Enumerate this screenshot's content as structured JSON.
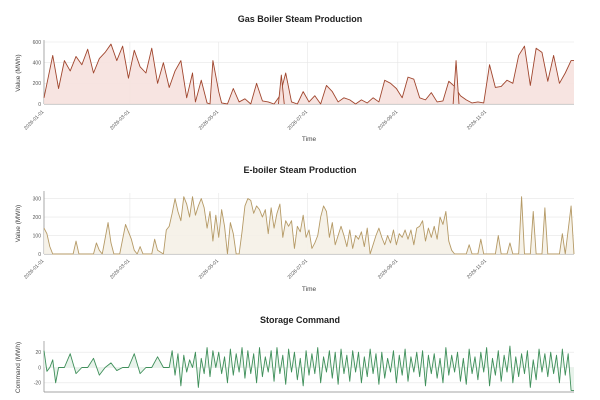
{
  "chart_data": [
    {
      "type": "area",
      "title": "Gas Boiler Steam Production",
      "xlabel": "Time",
      "ylabel": "Value (MWh)",
      "ylim": [
        0,
        600
      ],
      "yticks": [
        0,
        200,
        400,
        600
      ],
      "xticks": [
        "2026-01-01",
        "2026-03-01",
        "2026-05-01",
        "2026-07-01",
        "2026-09-01",
        "2026-11-01"
      ],
      "xtick_positions": [
        0,
        59,
        120,
        181,
        243,
        304
      ],
      "xrange": [
        0,
        364
      ],
      "grid": true,
      "colors": {
        "line": "#a0462e",
        "fill": "#f6e1de"
      },
      "segments": [
        {
          "x": [
            0,
            6,
            10,
            14,
            18,
            22,
            26,
            30,
            34,
            38,
            42,
            46,
            50,
            54,
            58,
            62,
            66,
            70,
            74,
            78,
            82,
            86,
            90,
            94,
            98,
            102,
            104,
            108,
            112,
            114,
            116,
            120,
            122,
            126,
            130,
            134,
            138,
            142,
            146,
            150,
            154,
            158,
            162,
            166,
            170,
            174,
            178,
            182,
            186,
            190,
            194,
            198,
            202,
            206,
            210,
            214,
            218,
            222,
            226,
            230,
            234,
            238,
            242,
            246,
            250,
            254,
            258,
            262,
            266,
            270,
            274,
            278,
            282,
            286,
            290,
            294,
            298,
            302,
            306,
            310,
            314,
            318,
            322,
            326,
            330,
            334,
            338,
            342,
            346,
            350,
            354,
            358,
            362,
            364
          ],
          "values": [
            60,
            470,
            150,
            420,
            320,
            460,
            380,
            530,
            300,
            440,
            500,
            580,
            420,
            560,
            250,
            520,
            360,
            300,
            540,
            200,
            400,
            160,
            320,
            420,
            60,
            300,
            20,
            230,
            10,
            0,
            420,
            120,
            10,
            0,
            150,
            20,
            50,
            0,
            200,
            30,
            20,
            0,
            80,
            300,
            20,
            0,
            120,
            20,
            80,
            0,
            180,
            120,
            20,
            60,
            40,
            0,
            40,
            10,
            60,
            20,
            230,
            200,
            150,
            60,
            260,
            240,
            60,
            40,
            110,
            20,
            30,
            220,
            170,
            80,
            40,
            10,
            20,
            10,
            380,
            160,
            170,
            230,
            200,
            470,
            560,
            180,
            540,
            500,
            220,
            470,
            200,
            300,
            420,
            420
          ]
        },
        {
          "x": [
            281,
            283,
            285
          ],
          "values": [
            0,
            420,
            0
          ]
        },
        {
          "x": [
            161,
            163,
            165
          ],
          "values": [
            0,
            280,
            0
          ]
        }
      ]
    },
    {
      "type": "area",
      "title": "E-boiler Steam Production",
      "xlabel": "Time",
      "ylabel": "Value (MWh)",
      "ylim": [
        0,
        330
      ],
      "yticks": [
        0,
        100,
        200,
        300
      ],
      "xticks": [
        "2026-01-01",
        "2026-03-01",
        "2026-05-01",
        "2026-07-01",
        "2026-09-01",
        "2026-11-01"
      ],
      "xtick_positions": [
        0,
        59,
        120,
        181,
        243,
        304
      ],
      "xrange": [
        0,
        364
      ],
      "grid": true,
      "colors": {
        "line": "#b59a66",
        "fill": "#f5f1e7"
      },
      "segments": [
        {
          "x": [
            0,
            2,
            4,
            6,
            20,
            22,
            24,
            26,
            34,
            36,
            38,
            40,
            44,
            46,
            48,
            50,
            52,
            56,
            60,
            62,
            64,
            66,
            68,
            70,
            74,
            76,
            78,
            82,
            84,
            86,
            88,
            90,
            92,
            94,
            96,
            98,
            100,
            102,
            104,
            106,
            108,
            110,
            112,
            114,
            116,
            118,
            120,
            122,
            124,
            126,
            128,
            130,
            132,
            134,
            136,
            138,
            140,
            142,
            144,
            146,
            148,
            150,
            152,
            154,
            156,
            158,
            160,
            162,
            164,
            166,
            168,
            170,
            172,
            174,
            176,
            178,
            180,
            182,
            184,
            186,
            188,
            190,
            192,
            194,
            196,
            198,
            200,
            202,
            204,
            206,
            208,
            210,
            212,
            214,
            216,
            218,
            220,
            222,
            224,
            226,
            228,
            230,
            232,
            234,
            236,
            238,
            240,
            242,
            244,
            246,
            248,
            250,
            252,
            254,
            256,
            258,
            260,
            262,
            264,
            266,
            268,
            270,
            272,
            274,
            276,
            278,
            280,
            282,
            290,
            292,
            294,
            298,
            300,
            302,
            310,
            312,
            314,
            318,
            320,
            322,
            326,
            328,
            330,
            334,
            336,
            338,
            342,
            344,
            346,
            350,
            354,
            356,
            358,
            362,
            364
          ],
          "values": [
            140,
            110,
            40,
            0,
            0,
            70,
            0,
            0,
            0,
            60,
            20,
            0,
            170,
            60,
            0,
            0,
            0,
            160,
            80,
            20,
            0,
            40,
            0,
            0,
            0,
            80,
            20,
            0,
            130,
            150,
            220,
            300,
            230,
            180,
            310,
            270,
            200,
            310,
            210,
            260,
            300,
            250,
            140,
            230,
            70,
            210,
            90,
            240,
            150,
            0,
            170,
            110,
            0,
            0,
            120,
            260,
            300,
            290,
            220,
            260,
            240,
            200,
            240,
            110,
            250,
            140,
            220,
            270,
            90,
            180,
            150,
            180,
            30,
            150,
            120,
            210,
            90,
            130,
            30,
            60,
            100,
            200,
            260,
            230,
            90,
            170,
            50,
            100,
            150,
            100,
            40,
            130,
            30,
            100,
            80,
            120,
            40,
            140,
            0,
            50,
            100,
            140,
            90,
            50,
            100,
            60,
            130,
            50,
            110,
            90,
            130,
            80,
            130,
            50,
            140,
            150,
            180,
            70,
            140,
            90,
            150,
            80,
            200,
            160,
            230,
            70,
            20,
            0,
            0,
            50,
            0,
            0,
            80,
            0,
            0,
            100,
            0,
            0,
            60,
            0,
            0,
            310,
            0,
            0,
            230,
            0,
            0,
            250,
            0,
            0,
            0,
            110,
            0,
            260,
            0
          ]
        }
      ]
    },
    {
      "type": "area",
      "title": "Storage Command",
      "xlabel": "",
      "ylabel": "Command (MWh)",
      "ylim": [
        -32,
        32
      ],
      "yticks": [
        -20,
        0,
        20
      ],
      "xrange": [
        0,
        364
      ],
      "grid": true,
      "colors": {
        "line": "#3f8f5a",
        "fill": "#e6f2e9"
      },
      "segments": [
        {
          "x": [
            0,
            2,
            4,
            6,
            8,
            10,
            14,
            18,
            22,
            26,
            30,
            34,
            38,
            42,
            46,
            50,
            54,
            58,
            62,
            66,
            70,
            74,
            78,
            82,
            86,
            88,
            90,
            92,
            94,
            96,
            98,
            100,
            102,
            104,
            106,
            108,
            110,
            112,
            114,
            116,
            118,
            120,
            122,
            124,
            126,
            128,
            130,
            132,
            134,
            136,
            138,
            140,
            142,
            144,
            146,
            148,
            150,
            152,
            154,
            156,
            158,
            160,
            162,
            164,
            166,
            168,
            170,
            172,
            174,
            176,
            178,
            180,
            182,
            184,
            186,
            188,
            190,
            192,
            194,
            196,
            198,
            200,
            202,
            204,
            206,
            208,
            210,
            212,
            214,
            216,
            218,
            220,
            222,
            224,
            226,
            228,
            230,
            232,
            234,
            236,
            238,
            240,
            242,
            244,
            246,
            248,
            250,
            252,
            254,
            256,
            258,
            260,
            262,
            264,
            266,
            268,
            270,
            272,
            274,
            276,
            278,
            280,
            282,
            284,
            286,
            288,
            290,
            292,
            294,
            296,
            298,
            300,
            302,
            304,
            306,
            308,
            310,
            312,
            314,
            316,
            318,
            320,
            322,
            324,
            326,
            328,
            330,
            332,
            334,
            336,
            338,
            340,
            342,
            344,
            346,
            348,
            350,
            352,
            354,
            356,
            358,
            360,
            362,
            364
          ],
          "values": [
            22,
            -5,
            0,
            10,
            -20,
            0,
            0,
            18,
            -8,
            0,
            0,
            12,
            -10,
            0,
            6,
            -4,
            0,
            0,
            18,
            -8,
            0,
            0,
            14,
            0,
            0,
            22,
            -10,
            18,
            -24,
            16,
            -6,
            10,
            0,
            20,
            -26,
            12,
            -8,
            26,
            -12,
            22,
            0,
            20,
            -8,
            14,
            -20,
            24,
            -10,
            18,
            -6,
            26,
            -14,
            22,
            -8,
            18,
            -20,
            26,
            -12,
            14,
            -6,
            22,
            -18,
            26,
            -8,
            16,
            -22,
            24,
            -6,
            20,
            -16,
            12,
            -24,
            22,
            -10,
            18,
            -8,
            26,
            -20,
            14,
            -6,
            22,
            -14,
            20,
            -22,
            24,
            -8,
            16,
            -18,
            22,
            -6,
            20,
            -20,
            14,
            -12,
            24,
            -8,
            18,
            -22,
            20,
            -14,
            12,
            -6,
            22,
            -20,
            16,
            -10,
            24,
            -18,
            14,
            -6,
            20,
            -12,
            22,
            -24,
            16,
            -8,
            18,
            -14,
            12,
            -20,
            26,
            -10,
            16,
            -6,
            20,
            -18,
            12,
            -22,
            24,
            -8,
            14,
            -16,
            20,
            -6,
            26,
            -24,
            12,
            -10,
            22,
            -18,
            16,
            -6,
            28,
            -20,
            14,
            -12,
            18,
            -8,
            22,
            -26,
            10,
            -16,
            24,
            -6,
            18,
            -12,
            20,
            -8,
            16,
            -20,
            24,
            -10,
            18,
            -30,
            -30
          ]
        }
      ]
    }
  ]
}
